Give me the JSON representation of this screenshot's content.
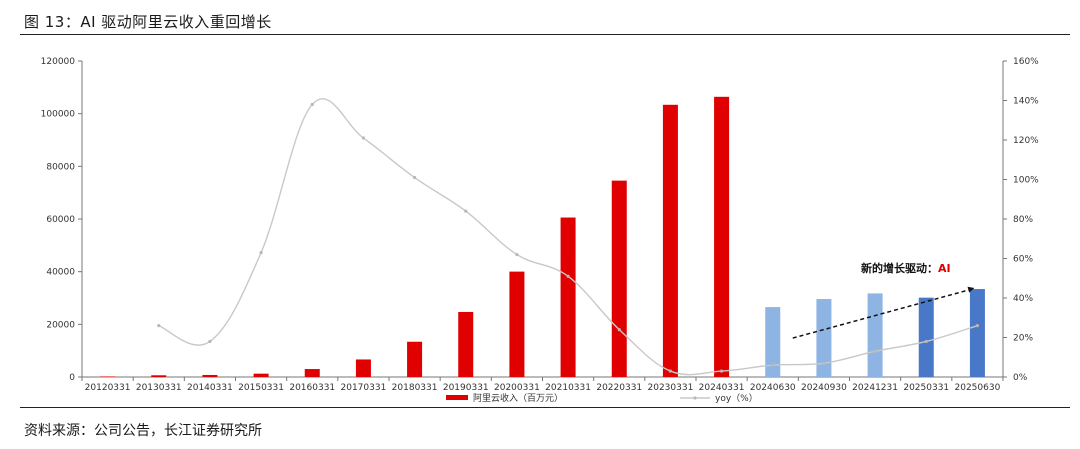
{
  "page": {
    "title": "图 13：AI 驱动阿里云收入重回增长",
    "source": "资料来源：公司公告，长江证券研究所"
  },
  "chart_data": {
    "type": "bar",
    "categories": [
      "20120331",
      "20130331",
      "20140331",
      "20150331",
      "20160331",
      "20170331",
      "20180331",
      "20190331",
      "20200331",
      "20210331",
      "20220331",
      "20230331",
      "20240331",
      "20240630",
      "20240930",
      "20241231",
      "20250331",
      "20250630"
    ],
    "series": [
      {
        "name": "阿里云收入（百万元）",
        "type": "bar",
        "axis": "left",
        "values": [
          200,
          650,
          770,
          1270,
          3020,
          6660,
          13390,
          24700,
          40020,
          60560,
          74570,
          103370,
          106400,
          26550,
          29610,
          31740,
          30130,
          33400
        ],
        "bar_colors": [
          "#e00000",
          "#e00000",
          "#e00000",
          "#e00000",
          "#e00000",
          "#e00000",
          "#e00000",
          "#e00000",
          "#e00000",
          "#e00000",
          "#e00000",
          "#e00000",
          "#e00000",
          "#8eb4e3",
          "#8eb4e3",
          "#8eb4e3",
          "#4a78c8",
          "#4a78c8"
        ]
      },
      {
        "name": "yoy（%）",
        "type": "line",
        "axis": "right",
        "values": [
          null,
          26,
          18,
          63,
          138,
          121,
          101,
          84,
          62,
          51,
          24,
          3,
          3,
          6,
          7,
          13,
          18,
          26
        ],
        "color": "#c8c8c8"
      }
    ],
    "y_left": {
      "min": 0,
      "max": 120000,
      "ticks": [
        "0",
        "20000",
        "40000",
        "60000",
        "80000",
        "100000",
        "120000"
      ]
    },
    "y_right": {
      "min": 0,
      "max": 160,
      "ticks": [
        "0%",
        "20%",
        "40%",
        "60%",
        "80%",
        "100%",
        "120%",
        "140%",
        "160%"
      ]
    },
    "annotation": {
      "prefix": "新的增长驱动：",
      "highlight": "AI",
      "highlight_color": "#e00000"
    },
    "trend_arrow": {
      "from_category": "20240630",
      "to_category": "20250630",
      "style": "dashed"
    },
    "legend_position": "bottom",
    "grid": false
  }
}
